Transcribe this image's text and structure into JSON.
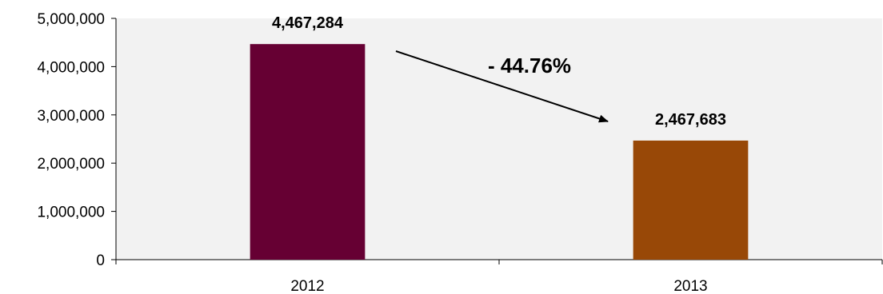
{
  "chart_data": {
    "type": "bar",
    "categories": [
      "2012",
      "2013"
    ],
    "values": [
      4467284,
      2467683
    ],
    "data_labels": [
      "4,467,284",
      "2,467,683"
    ],
    "bar_colors": [
      "#660033",
      "#984807"
    ],
    "ylim": [
      0,
      5000000
    ],
    "y_ticks": [
      0,
      1000000,
      2000000,
      3000000,
      4000000,
      5000000
    ],
    "y_tick_labels": [
      "0",
      "1,000,000",
      "2,000,000",
      "3,000,000",
      "4,000,000",
      "5,000,000"
    ],
    "plot_background": "#f2f2f2",
    "grid": false,
    "legend": "none",
    "annotation": {
      "text": "- 44.76%",
      "type": "arrow",
      "from": "2012",
      "to": "2013"
    },
    "title": "",
    "xlabel": "",
    "ylabel": ""
  }
}
